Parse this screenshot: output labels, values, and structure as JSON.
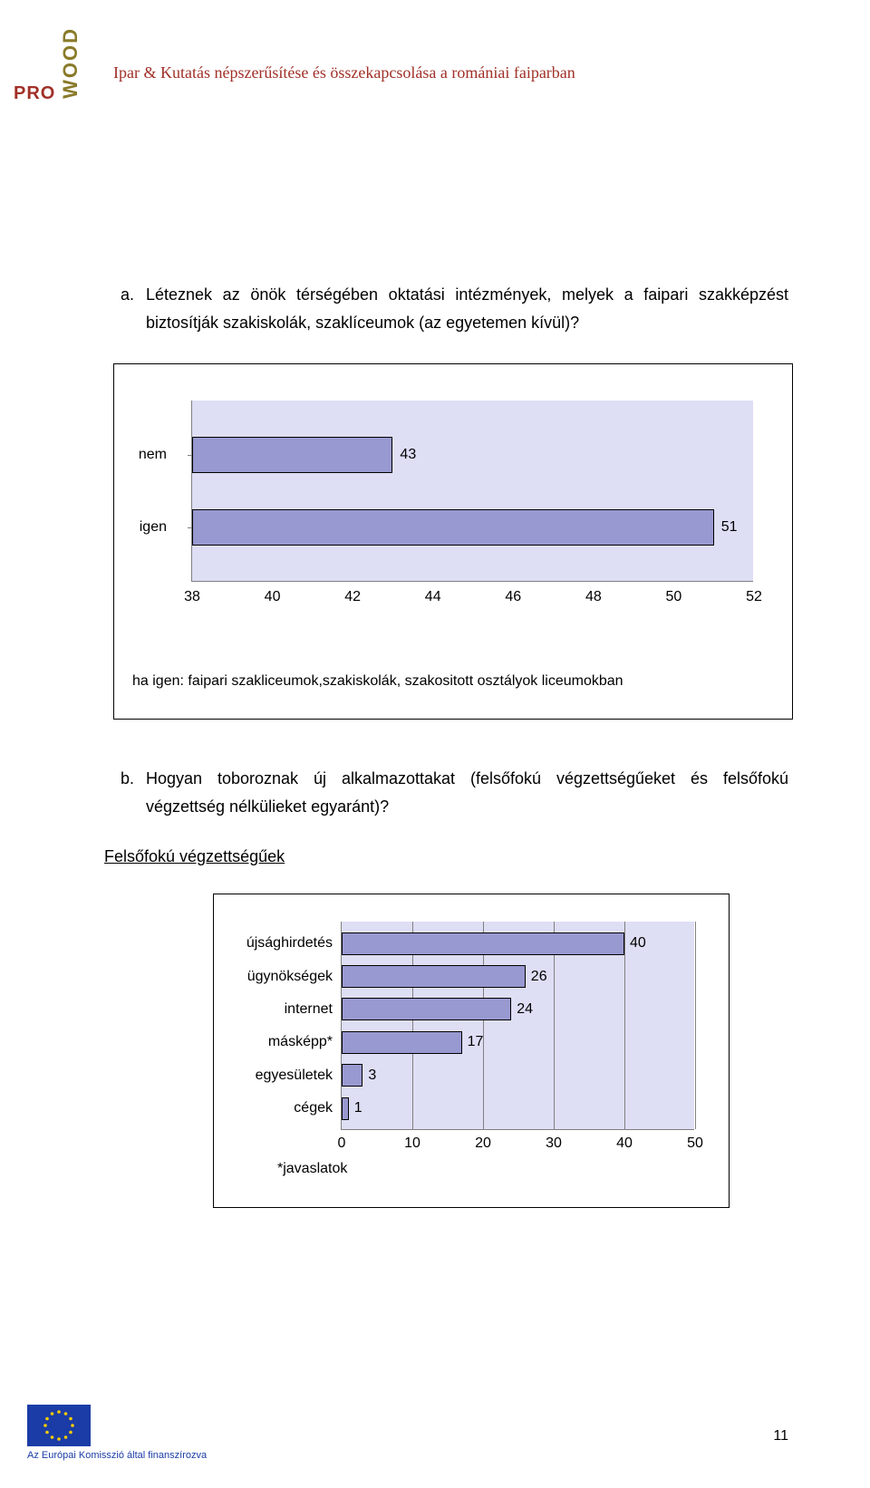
{
  "header": {
    "title": "Ipar & Kutatás népszerűsítése és összekapcsolása a romániai faiparban",
    "logo_top": "PRO",
    "logo_side": "WOOD"
  },
  "section_a": {
    "bullet": "a.",
    "text": "Léteznek az önök térségében oktatási intézmények, melyek a faipari szakképzést biztosítják szakiskolák, szaklíceumok (az egyetemen kívül)?"
  },
  "chart1": {
    "type": "bar-horizontal",
    "categories": [
      "nem",
      "igen"
    ],
    "values": [
      43,
      51
    ],
    "bar_color": "#9999d1",
    "bar_border_color": "#000000",
    "plot_bg": "#dedef5",
    "grid_color": "#808080",
    "xlim": [
      38,
      52
    ],
    "xtick_step": 2,
    "xticks": [
      38,
      40,
      42,
      44,
      46,
      48,
      50,
      52
    ],
    "note": "ha igen: faipari szakliceumok,szakiskolák, szakositott osztályok liceumokban",
    "label_fontsize": 16
  },
  "section_b": {
    "bullet": "b.",
    "text": "Hogyan toboroznak új alkalmazottakat (felsőfokú végzettségűeket és felsőfokú végzettség nélkülieket egyaránt)?"
  },
  "subheading": "Felsőfokú végzettségűek",
  "chart2": {
    "type": "bar-horizontal",
    "categories": [
      "újsághirdetés",
      "ügynökségek",
      "internet",
      "másképp*",
      "egyesületek",
      "cégek"
    ],
    "values": [
      40,
      26,
      24,
      17,
      3,
      1
    ],
    "bar_color": "#9999d1",
    "bar_border_color": "#000000",
    "plot_bg": "#dedef5",
    "grid_color": "#808080",
    "xlim": [
      0,
      50
    ],
    "xtick_step": 10,
    "xticks": [
      0,
      10,
      20,
      30,
      40,
      50
    ],
    "footnote": "*javaslatok",
    "label_fontsize": 16
  },
  "footer": {
    "text": "Az Európai Komisszió által finanszírozva",
    "page_number": "11",
    "flag_bg": "#1b3ca6",
    "flag_star_color": "#ffcc00"
  }
}
